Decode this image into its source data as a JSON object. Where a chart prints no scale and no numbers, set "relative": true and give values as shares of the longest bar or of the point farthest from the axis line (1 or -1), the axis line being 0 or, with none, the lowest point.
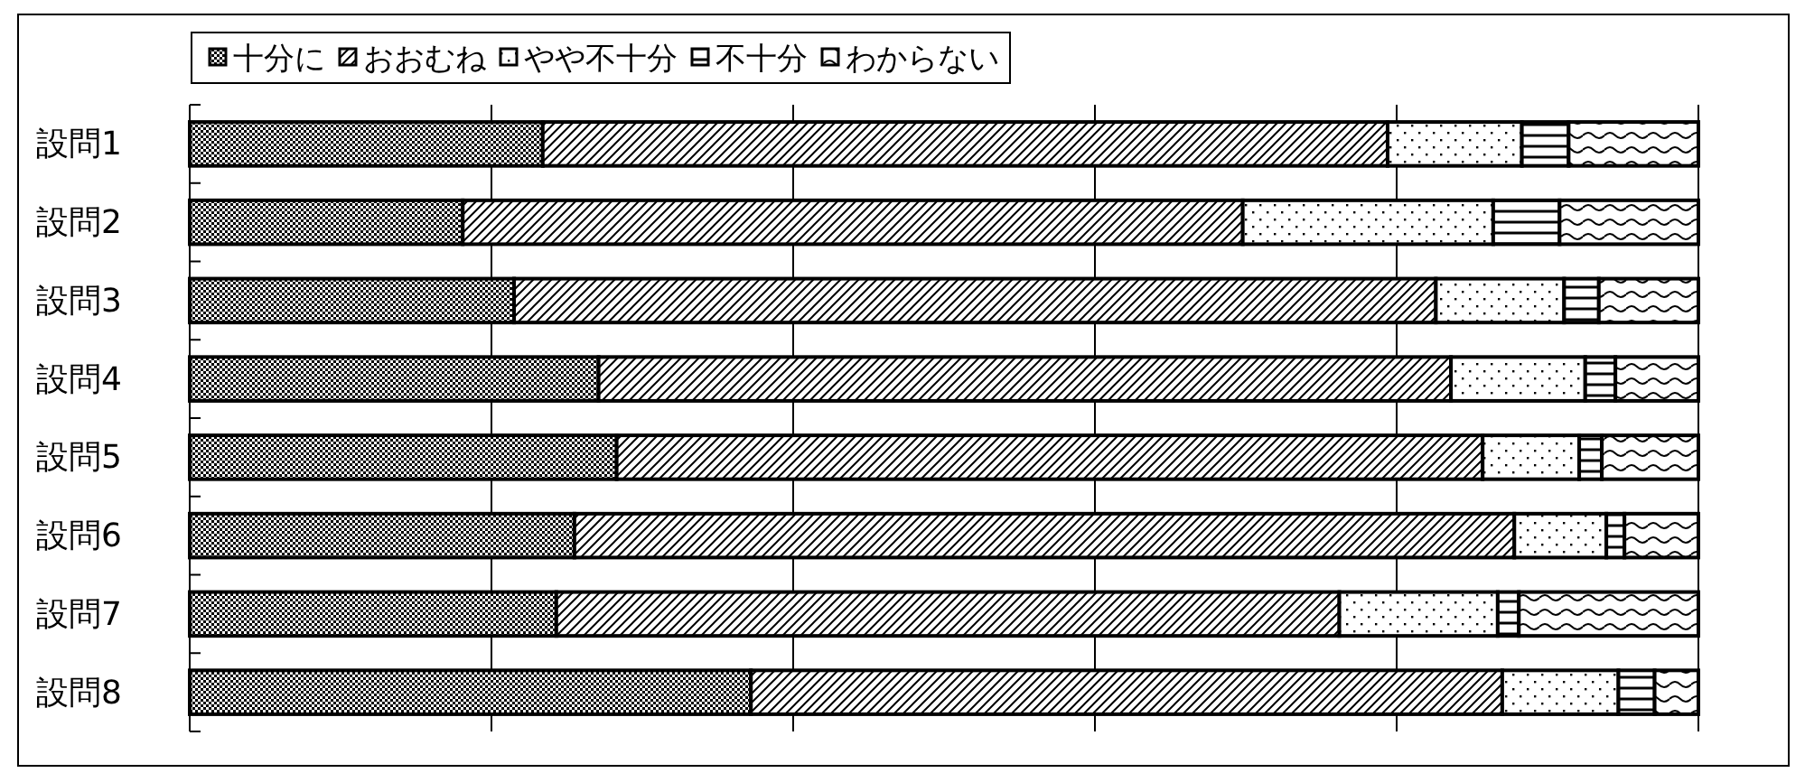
{
  "chart_data": {
    "type": "bar",
    "orientation": "horizontal",
    "stacked": true,
    "relative": true,
    "grid": "x",
    "legend": "top",
    "categories": [
      "設問1",
      "設問2",
      "設問3",
      "設問4",
      "設問5",
      "設問6",
      "設問7",
      "設問8"
    ],
    "series": [
      {
        "name": "十分に",
        "color": "#000000",
        "values": [
          0.234,
          0.181,
          0.215,
          0.271,
          0.283,
          0.255,
          0.243,
          0.372
        ]
      },
      {
        "name": "おおむね",
        "color": "#000000",
        "values": [
          0.56,
          0.517,
          0.611,
          0.565,
          0.574,
          0.623,
          0.519,
          0.498
        ]
      },
      {
        "name": "やや不十分",
        "color": "#000000",
        "values": [
          0.089,
          0.166,
          0.085,
          0.089,
          0.064,
          0.061,
          0.105,
          0.077
        ]
      },
      {
        "name": "不十分",
        "color": "#000000",
        "values": [
          0.031,
          0.044,
          0.023,
          0.02,
          0.015,
          0.012,
          0.014,
          0.024
        ]
      },
      {
        "name": "わからない",
        "color": "#000000",
        "values": [
          0.086,
          0.092,
          0.066,
          0.055,
          0.064,
          0.049,
          0.119,
          0.029
        ]
      }
    ]
  }
}
